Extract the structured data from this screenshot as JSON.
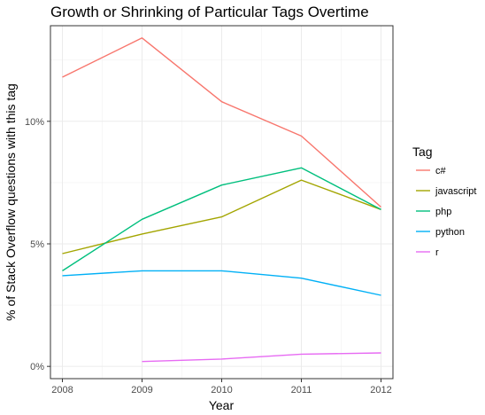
{
  "chart_data": {
    "type": "line",
    "title": "Growth or Shrinking of Particular Tags Overtime",
    "xlabel": "Year",
    "ylabel": "% of Stack Overflow questions with this tag",
    "x": [
      2008,
      2009,
      2010,
      2011,
      2012
    ],
    "x_ticks": [
      "2008",
      "2009",
      "2010",
      "2011",
      "2012"
    ],
    "y_ticks": [
      0,
      5,
      10
    ],
    "y_tick_labels": [
      "0%",
      "5%",
      "10%"
    ],
    "xlim": [
      2007.85,
      2012.15
    ],
    "ylim": [
      -0.5,
      13.9
    ],
    "grid": true,
    "legend": {
      "title": "Tag",
      "position": "right"
    },
    "series": [
      {
        "name": "c#",
        "color": "#F8766D",
        "x": [
          2008,
          2009,
          2010,
          2011,
          2012
        ],
        "values": [
          11.8,
          13.4,
          10.8,
          9.4,
          6.5
        ]
      },
      {
        "name": "javascript",
        "color": "#A3A500",
        "x": [
          2008,
          2009,
          2010,
          2011,
          2012
        ],
        "values": [
          4.6,
          5.4,
          6.1,
          7.6,
          6.4
        ]
      },
      {
        "name": "php",
        "color": "#00BF7D",
        "x": [
          2008,
          2009,
          2010,
          2011,
          2012
        ],
        "values": [
          3.9,
          6.0,
          7.4,
          8.1,
          6.4
        ]
      },
      {
        "name": "python",
        "color": "#00B0F6",
        "x": [
          2008,
          2009,
          2010,
          2011,
          2012
        ],
        "values": [
          3.7,
          3.9,
          3.9,
          3.6,
          2.9
        ]
      },
      {
        "name": "r",
        "color": "#E76BF3",
        "x": [
          2009,
          2010,
          2011,
          2012
        ],
        "values": [
          0.2,
          0.3,
          0.5,
          0.55
        ]
      }
    ]
  }
}
